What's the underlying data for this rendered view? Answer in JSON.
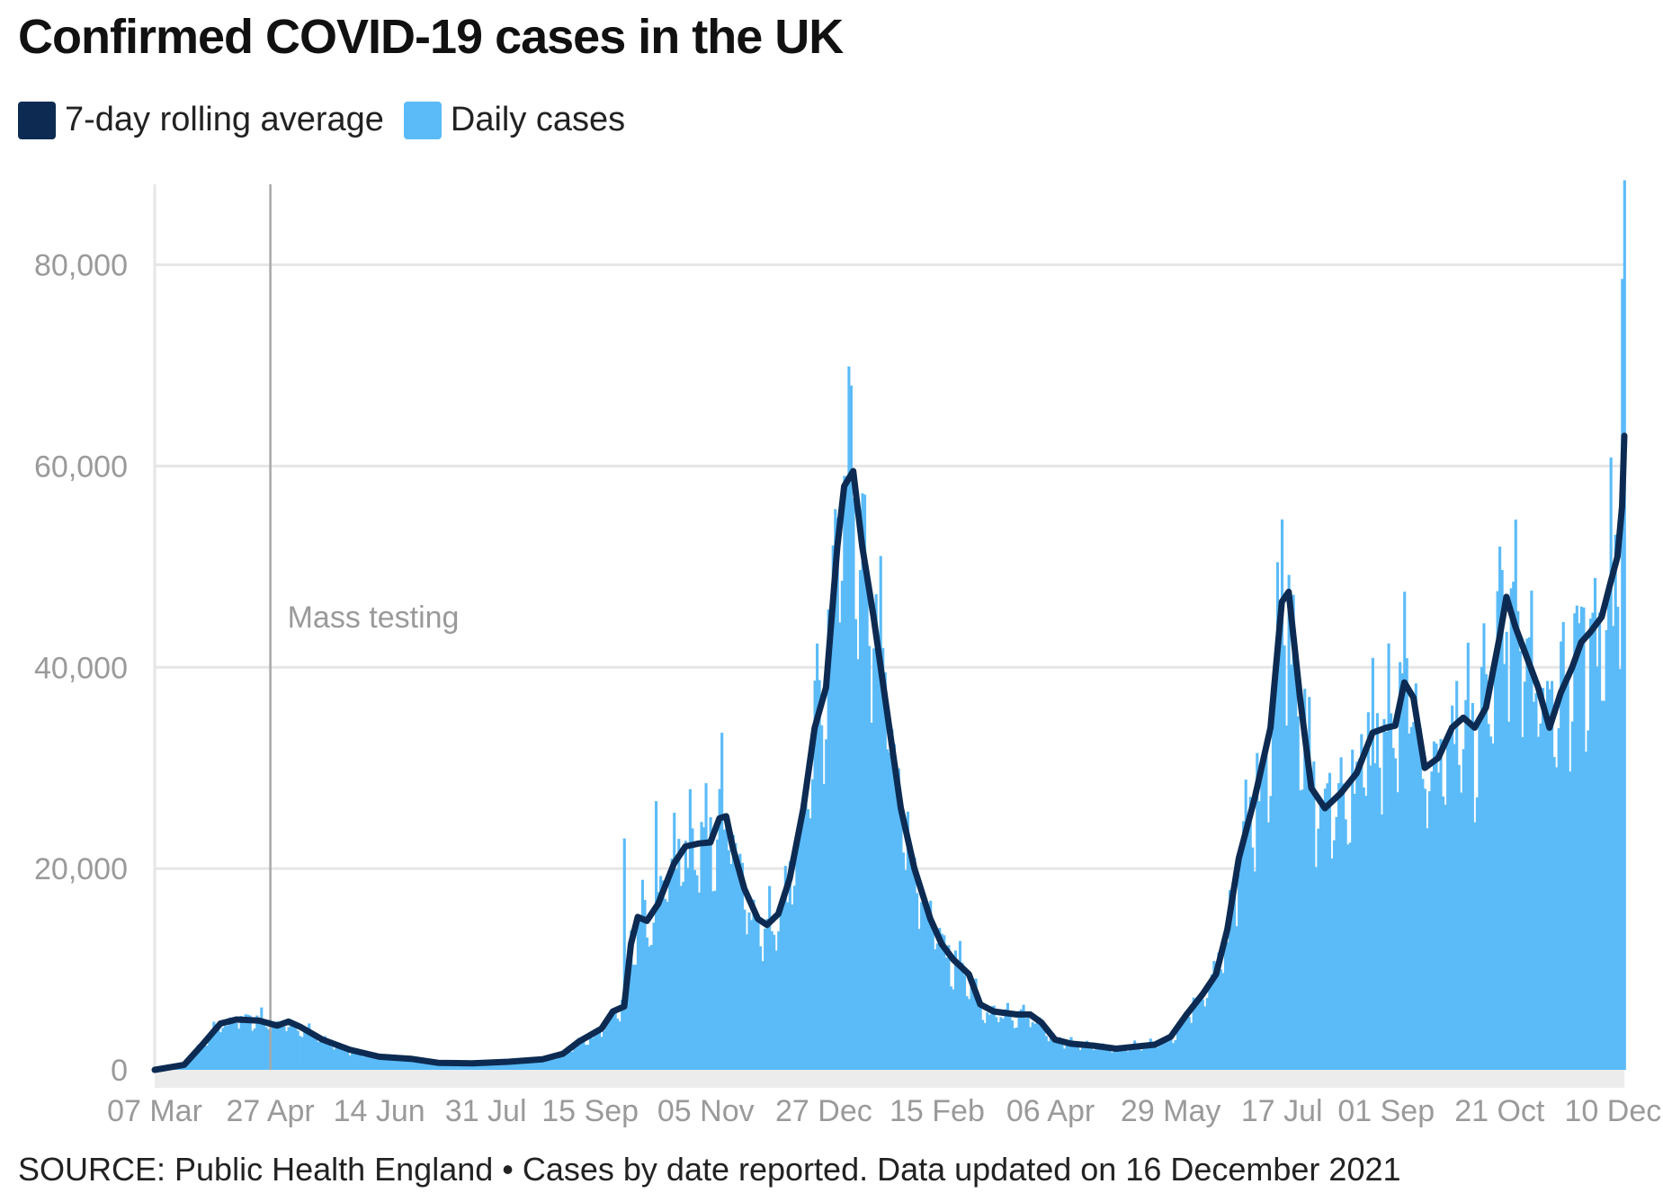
{
  "chart_data": {
    "type": "bar",
    "title": "Confirmed COVID-19 cases in the UK",
    "source": "SOURCE: Public Health England • Cases by date reported. Data updated on 16 December 2021",
    "legend": [
      {
        "name": "7-day rolling average",
        "color": "#0d2b52"
      },
      {
        "name": "Daily cases",
        "color": "#5bbbf8"
      }
    ],
    "xlabel": "",
    "ylabel": "",
    "ylim": [
      0,
      88000
    ],
    "y_ticks": [
      0,
      20000,
      40000,
      60000,
      80000
    ],
    "y_tick_labels": [
      "0",
      "20,000",
      "40,000",
      "60,000",
      "80,000"
    ],
    "x_start": "2020-03-07",
    "x_end": "2021-12-15",
    "x_ticks": [
      {
        "date": "2020-03-07",
        "label": "07 Mar"
      },
      {
        "date": "2020-04-27",
        "label": "27 Apr"
      },
      {
        "date": "2020-06-14",
        "label": "14 Jun"
      },
      {
        "date": "2020-07-31",
        "label": "31 Jul"
      },
      {
        "date": "2020-09-15",
        "label": "15 Sep"
      },
      {
        "date": "2020-11-05",
        "label": "05 Nov"
      },
      {
        "date": "2020-12-27",
        "label": "27 Dec"
      },
      {
        "date": "2021-02-15",
        "label": "15 Feb"
      },
      {
        "date": "2021-04-06",
        "label": "06 Apr"
      },
      {
        "date": "2021-05-29",
        "label": "29 May"
      },
      {
        "date": "2021-07-17",
        "label": "17 Jul"
      },
      {
        "date": "2021-09-01",
        "label": "01 Sep"
      },
      {
        "date": "2021-10-21",
        "label": "21 Oct"
      },
      {
        "date": "2021-12-10",
        "label": "10 Dec"
      }
    ],
    "annotation": {
      "date": "2020-04-27",
      "label": "Mass testing"
    },
    "series": [
      {
        "name": "7-day rolling average",
        "type": "line",
        "color": "#0d2b52",
        "points": [
          [
            "2020-03-07",
            0
          ],
          [
            "2020-03-20",
            500
          ],
          [
            "2020-03-28",
            2500
          ],
          [
            "2020-04-05",
            4600
          ],
          [
            "2020-04-12",
            5000
          ],
          [
            "2020-04-22",
            4900
          ],
          [
            "2020-04-30",
            4400
          ],
          [
            "2020-05-05",
            4800
          ],
          [
            "2020-05-10",
            4300
          ],
          [
            "2020-05-20",
            3000
          ],
          [
            "2020-06-01",
            2000
          ],
          [
            "2020-06-14",
            1300
          ],
          [
            "2020-06-28",
            1100
          ],
          [
            "2020-07-10",
            700
          ],
          [
            "2020-07-25",
            650
          ],
          [
            "2020-08-10",
            800
          ],
          [
            "2020-08-25",
            1050
          ],
          [
            "2020-09-03",
            1600
          ],
          [
            "2020-09-10",
            2800
          ],
          [
            "2020-09-20",
            4100
          ],
          [
            "2020-09-25",
            5800
          ],
          [
            "2020-09-30",
            6300
          ],
          [
            "2020-10-03",
            12500
          ],
          [
            "2020-10-06",
            15200
          ],
          [
            "2020-10-10",
            14800
          ],
          [
            "2020-10-15",
            16500
          ],
          [
            "2020-10-22",
            20500
          ],
          [
            "2020-10-27",
            22200
          ],
          [
            "2020-11-02",
            22500
          ],
          [
            "2020-11-07",
            22600
          ],
          [
            "2020-11-11",
            25000
          ],
          [
            "2020-11-14",
            25200
          ],
          [
            "2020-11-17",
            22000
          ],
          [
            "2020-11-22",
            18000
          ],
          [
            "2020-11-28",
            15000
          ],
          [
            "2020-12-02",
            14400
          ],
          [
            "2020-12-07",
            15500
          ],
          [
            "2020-12-12",
            19000
          ],
          [
            "2020-12-18",
            26000
          ],
          [
            "2020-12-23",
            34000
          ],
          [
            "2020-12-28",
            38000
          ],
          [
            "2021-01-02",
            52000
          ],
          [
            "2021-01-05",
            58000
          ],
          [
            "2021-01-09",
            59500
          ],
          [
            "2021-01-13",
            52000
          ],
          [
            "2021-01-18",
            45000
          ],
          [
            "2021-01-23",
            37000
          ],
          [
            "2021-01-30",
            26000
          ],
          [
            "2021-02-05",
            20000
          ],
          [
            "2021-02-12",
            15000
          ],
          [
            "2021-02-17",
            12500
          ],
          [
            "2021-02-22",
            11000
          ],
          [
            "2021-03-01",
            9500
          ],
          [
            "2021-03-06",
            6500
          ],
          [
            "2021-03-12",
            5800
          ],
          [
            "2021-03-22",
            5500
          ],
          [
            "2021-03-28",
            5500
          ],
          [
            "2021-04-02",
            4700
          ],
          [
            "2021-04-08",
            3000
          ],
          [
            "2021-04-15",
            2600
          ],
          [
            "2021-04-25",
            2400
          ],
          [
            "2021-05-05",
            2100
          ],
          [
            "2021-05-13",
            2300
          ],
          [
            "2021-05-22",
            2500
          ],
          [
            "2021-05-29",
            3300
          ],
          [
            "2021-06-05",
            5500
          ],
          [
            "2021-06-12",
            7500
          ],
          [
            "2021-06-18",
            9500
          ],
          [
            "2021-06-23",
            14000
          ],
          [
            "2021-06-28",
            21000
          ],
          [
            "2021-07-05",
            27000
          ],
          [
            "2021-07-12",
            34000
          ],
          [
            "2021-07-17",
            46500
          ],
          [
            "2021-07-20",
            47500
          ],
          [
            "2021-07-25",
            37000
          ],
          [
            "2021-07-30",
            28000
          ],
          [
            "2021-08-05",
            26000
          ],
          [
            "2021-08-12",
            27500
          ],
          [
            "2021-08-19",
            29500
          ],
          [
            "2021-08-26",
            33500
          ],
          [
            "2021-09-01",
            34000
          ],
          [
            "2021-09-05",
            34200
          ],
          [
            "2021-09-09",
            38500
          ],
          [
            "2021-09-13",
            37000
          ],
          [
            "2021-09-18",
            30000
          ],
          [
            "2021-09-24",
            31000
          ],
          [
            "2021-09-30",
            34000
          ],
          [
            "2021-10-05",
            35000
          ],
          [
            "2021-10-10",
            34000
          ],
          [
            "2021-10-15",
            36000
          ],
          [
            "2021-10-21",
            43000
          ],
          [
            "2021-10-24",
            47000
          ],
          [
            "2021-10-28",
            44000
          ],
          [
            "2021-11-02",
            41000
          ],
          [
            "2021-11-07",
            38000
          ],
          [
            "2021-11-12",
            34000
          ],
          [
            "2021-11-17",
            37500
          ],
          [
            "2021-11-22",
            40000
          ],
          [
            "2021-11-26",
            42500
          ],
          [
            "2021-11-30",
            43500
          ],
          [
            "2021-12-05",
            45000
          ],
          [
            "2021-12-09",
            48500
          ],
          [
            "2021-12-12",
            51000
          ],
          [
            "2021-12-14",
            56000
          ],
          [
            "2021-12-15",
            63000
          ]
        ]
      },
      {
        "name": "Daily cases",
        "type": "bar",
        "color": "#5bbbf8",
        "values_note_peaks": [
          [
            "2020-04-23",
            6200
          ],
          [
            "2020-09-30",
            23000
          ],
          [
            "2020-10-14",
            26700
          ],
          [
            "2020-11-12",
            33500
          ],
          [
            "2021-01-08",
            68000
          ],
          [
            "2021-07-17",
            54700
          ],
          [
            "2021-10-21",
            52000
          ],
          [
            "2021-12-14",
            78600
          ],
          [
            "2021-12-15",
            88400
          ]
        ]
      }
    ]
  }
}
